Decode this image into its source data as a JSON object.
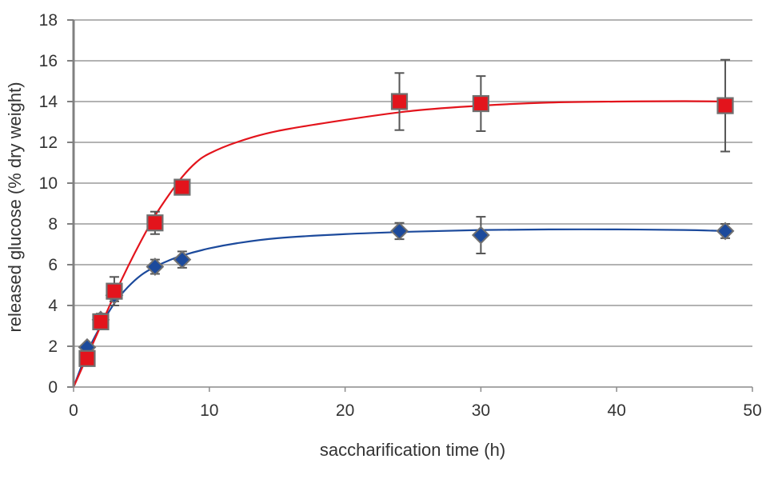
{
  "chart_data": {
    "type": "scatter",
    "title": "",
    "xlabel": "saccharification time (h)",
    "ylabel": "released glucose (% dry weight)",
    "xlim": [
      0,
      50
    ],
    "ylim": [
      0,
      18
    ],
    "xticks": [
      0,
      10,
      20,
      30,
      40,
      50
    ],
    "yticks": [
      0,
      2,
      4,
      6,
      8,
      10,
      12,
      14,
      16,
      18
    ],
    "grid": "horizontal",
    "legend": "none",
    "series": [
      {
        "marker": "square",
        "color": "#e3141c",
        "x": [
          1,
          2,
          3,
          6,
          8,
          24,
          30,
          48
        ],
        "y": [
          1.4,
          3.2,
          4.7,
          8.05,
          9.8,
          14.0,
          13.9,
          13.8
        ],
        "err": [
          0.15,
          0.2,
          0.7,
          0.55,
          0.3,
          1.4,
          1.35,
          2.25
        ],
        "fit": [
          [
            0,
            0
          ],
          [
            1,
            1.5
          ],
          [
            2,
            3.0
          ],
          [
            3,
            4.5
          ],
          [
            4,
            5.9
          ],
          [
            5,
            7.2
          ],
          [
            6,
            8.4
          ],
          [
            7,
            9.4
          ],
          [
            8,
            10.3
          ],
          [
            9,
            11.0
          ],
          [
            10,
            11.45
          ],
          [
            12,
            12.0
          ],
          [
            15,
            12.55
          ],
          [
            20,
            13.1
          ],
          [
            25,
            13.55
          ],
          [
            30,
            13.8
          ],
          [
            35,
            13.95
          ],
          [
            40,
            14.0
          ],
          [
            45,
            14.02
          ],
          [
            48,
            14.0
          ]
        ]
      },
      {
        "marker": "diamond",
        "color": "#1c4a9c",
        "x": [
          1,
          2,
          3,
          6,
          8,
          24,
          30,
          48
        ],
        "y": [
          1.95,
          3.3,
          4.5,
          5.9,
          6.25,
          7.65,
          7.45,
          7.65
        ],
        "err": [
          0.1,
          0.3,
          0.3,
          0.35,
          0.4,
          0.4,
          0.9,
          0.35
        ],
        "fit": [
          [
            0,
            0
          ],
          [
            1,
            1.7
          ],
          [
            2,
            3.0
          ],
          [
            3,
            4.1
          ],
          [
            4,
            4.9
          ],
          [
            5,
            5.5
          ],
          [
            6,
            5.9
          ],
          [
            7,
            6.2
          ],
          [
            8,
            6.45
          ],
          [
            10,
            6.8
          ],
          [
            12,
            7.05
          ],
          [
            15,
            7.3
          ],
          [
            20,
            7.5
          ],
          [
            25,
            7.62
          ],
          [
            30,
            7.7
          ],
          [
            35,
            7.73
          ],
          [
            40,
            7.73
          ],
          [
            45,
            7.7
          ],
          [
            48,
            7.65
          ]
        ]
      }
    ]
  }
}
